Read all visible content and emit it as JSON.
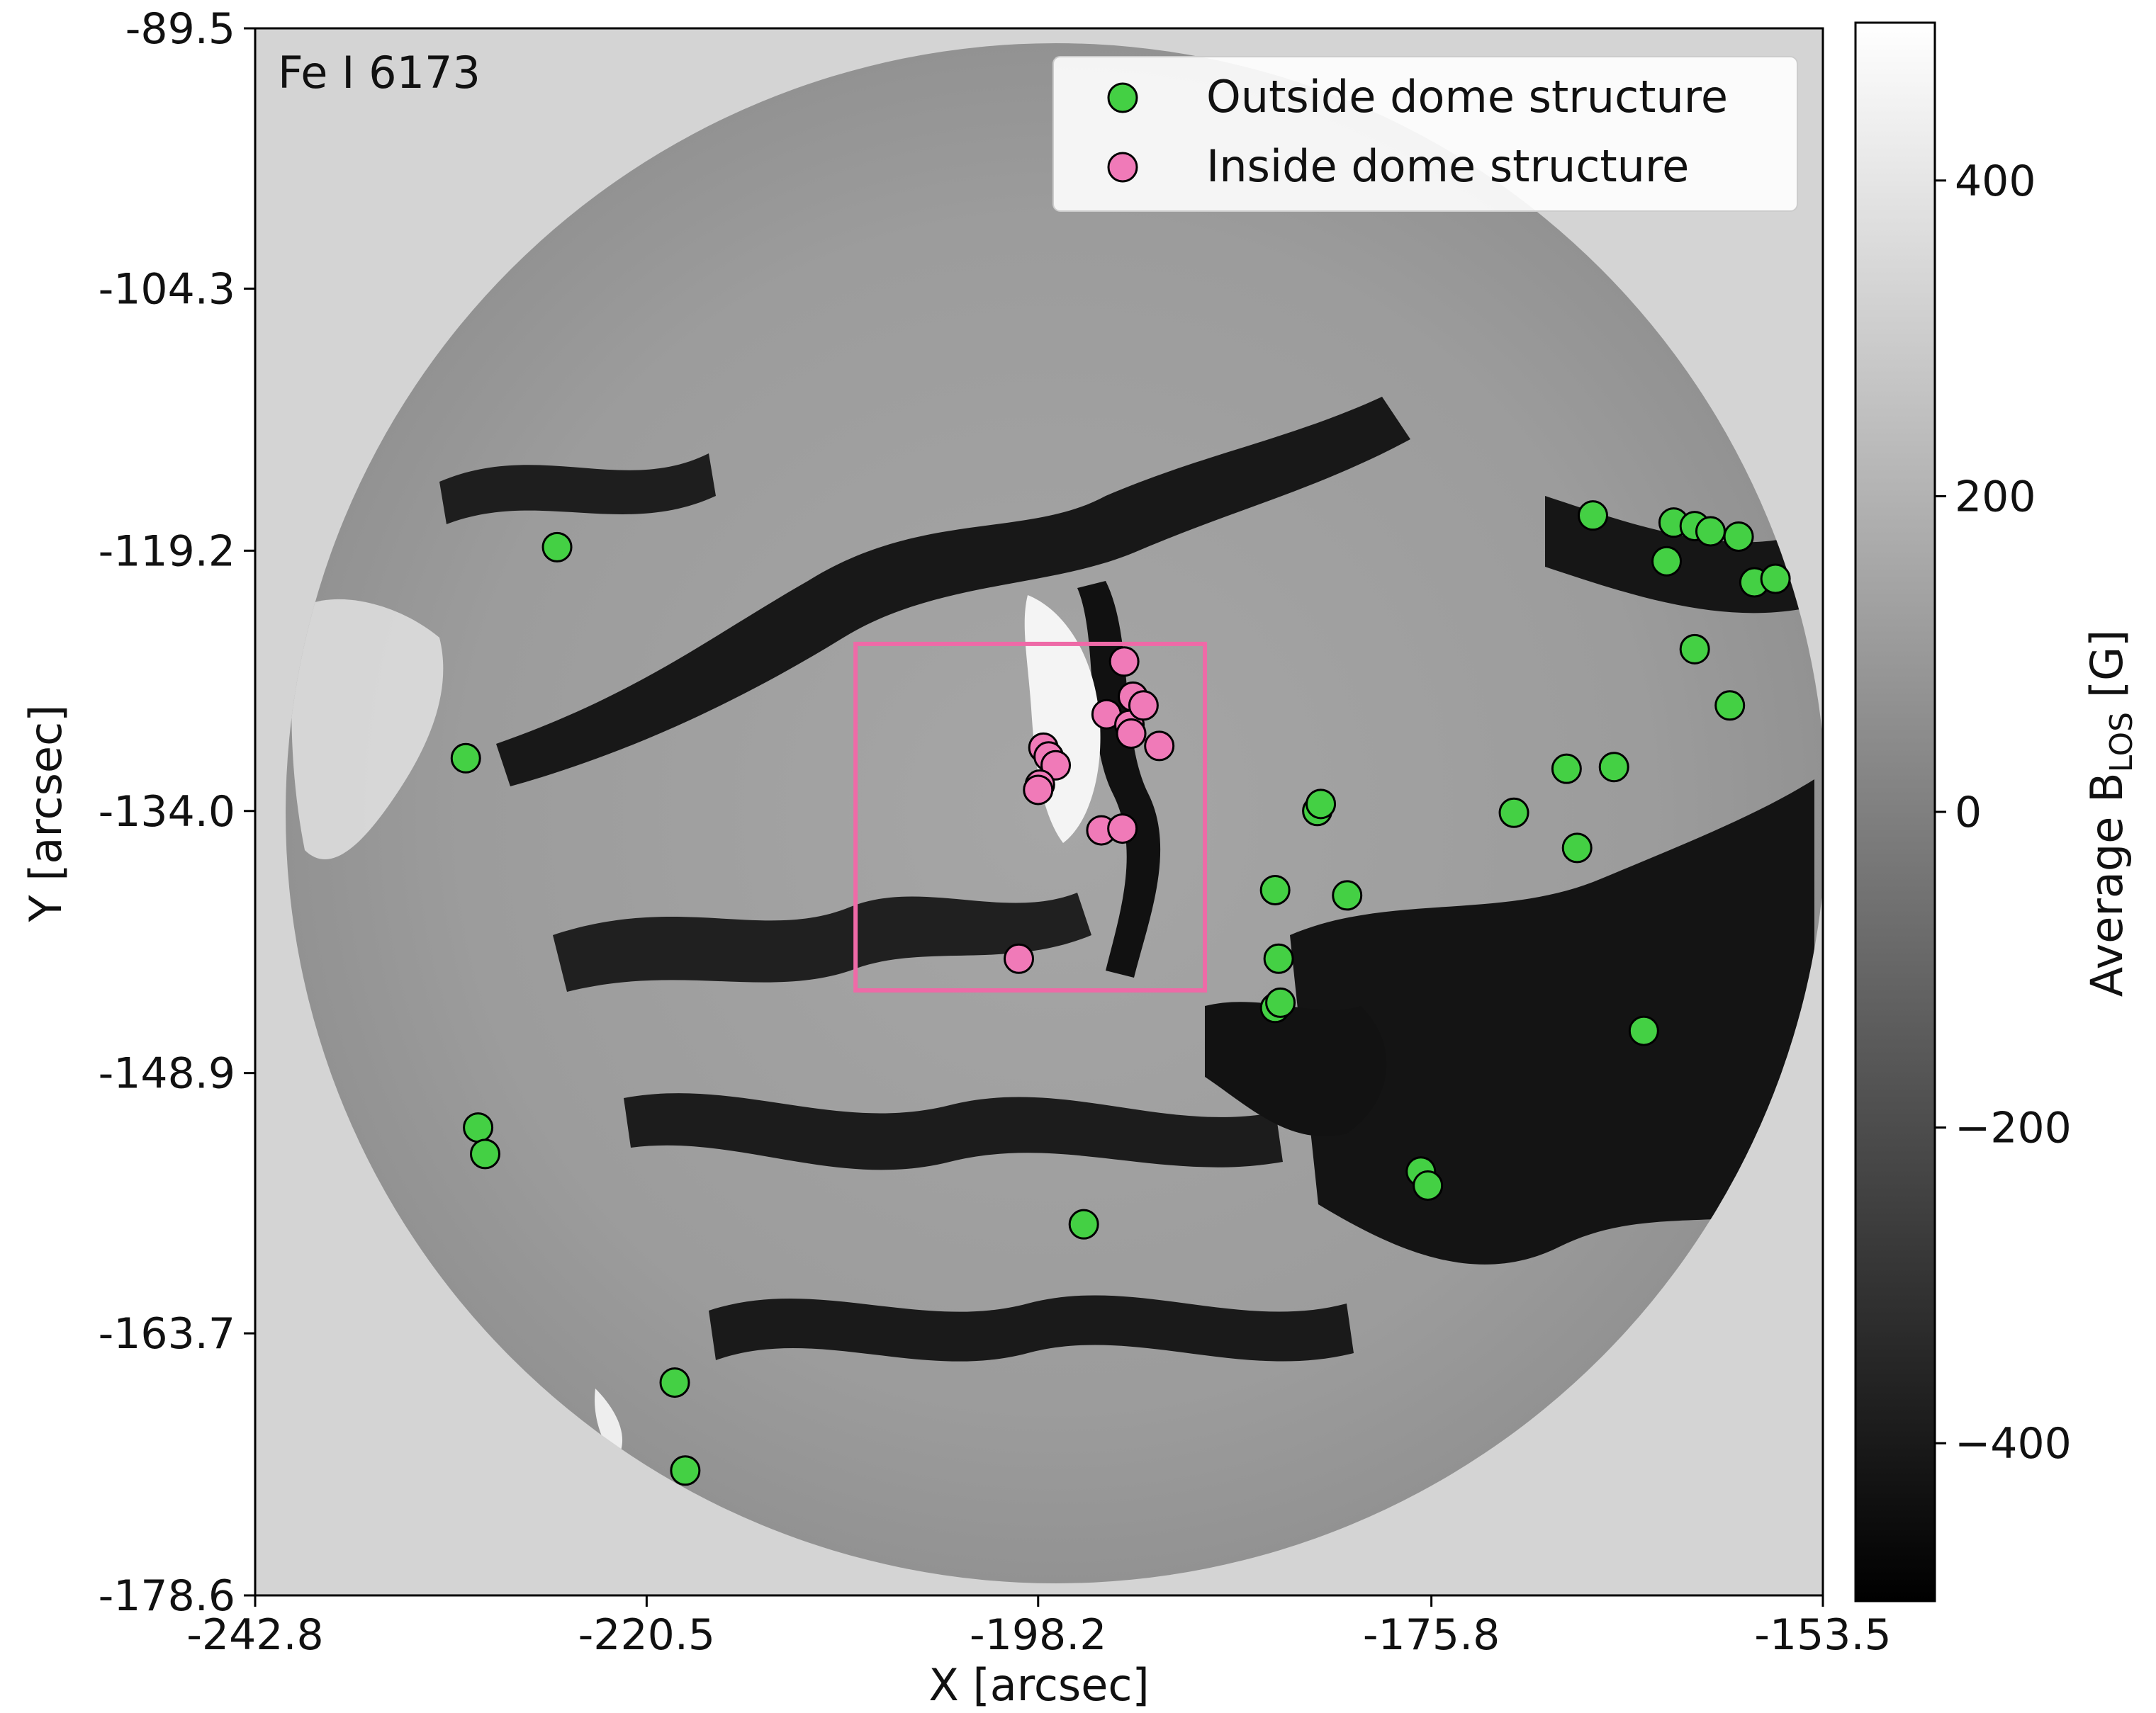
{
  "chart_data": {
    "type": "scatter",
    "panel_label": "Fe I 6173",
    "xlabel": "X [arcsec]",
    "ylabel": "Y [arcsec]",
    "xlim": [
      -242.8,
      -153.5
    ],
    "ylim": [
      -178.6,
      -89.5
    ],
    "x_ticks": [
      "-242.8",
      "-220.5",
      "-198.2",
      "-175.8",
      "-153.5"
    ],
    "y_ticks": [
      "-89.5",
      "-104.3",
      "-119.2",
      "-134.0",
      "-148.9",
      "-163.7",
      "-178.6"
    ],
    "colorbar": {
      "label": "Average B",
      "label_sub": "LOS",
      "label_suffix": " [G]",
      "range": [
        -500,
        500
      ],
      "ticks": [
        "400",
        "200",
        "0",
        "−200",
        "−400"
      ],
      "cmap": "gray"
    },
    "background_image": "grayscale LOS magnetogram disk",
    "region_box": {
      "x": [
        -208.6,
        -188.7
      ],
      "y": [
        -144.2,
        -124.5
      ],
      "color": "#ee6aa7"
    },
    "legend": {
      "position": "top-right"
    },
    "series": [
      {
        "name": "Outside dome structure",
        "color": "#44d044",
        "points": [
          [
            -225.6,
            -119.0
          ],
          [
            -230.8,
            -131.0
          ],
          [
            -230.1,
            -152.0
          ],
          [
            -229.7,
            -153.5
          ],
          [
            -218.9,
            -166.5
          ],
          [
            -218.3,
            -171.5
          ],
          [
            -195.6,
            -157.5
          ],
          [
            -184.7,
            -138.5
          ],
          [
            -184.5,
            -142.4
          ],
          [
            -184.7,
            -145.2
          ],
          [
            -184.4,
            -144.9
          ],
          [
            -182.3,
            -134.0
          ],
          [
            -182.1,
            -133.6
          ],
          [
            -180.6,
            -138.8
          ],
          [
            -176.4,
            -154.5
          ],
          [
            -176.0,
            -155.3
          ],
          [
            -171.1,
            -134.1
          ],
          [
            -167.5,
            -136.1
          ],
          [
            -168.1,
            -131.6
          ],
          [
            -165.4,
            -131.5
          ],
          [
            -166.6,
            -117.2
          ],
          [
            -163.7,
            -146.5
          ],
          [
            -162.4,
            -119.8
          ],
          [
            -162.0,
            -117.6
          ],
          [
            -160.8,
            -117.8
          ],
          [
            -159.9,
            -118.1
          ],
          [
            -160.8,
            -124.8
          ],
          [
            -158.3,
            -118.4
          ],
          [
            -158.8,
            -128.0
          ],
          [
            -157.4,
            -121.0
          ],
          [
            -156.2,
            -120.8
          ]
        ]
      },
      {
        "name": "Inside dome structure",
        "color": "#f07ab8",
        "points": [
          [
            -193.3,
            -125.5
          ],
          [
            -192.8,
            -127.5
          ],
          [
            -194.3,
            -128.5
          ],
          [
            -193.0,
            -129.1
          ],
          [
            -192.9,
            -129.6
          ],
          [
            -191.3,
            -130.3
          ],
          [
            -192.2,
            -128.0
          ],
          [
            -197.9,
            -130.4
          ],
          [
            -197.6,
            -130.9
          ],
          [
            -197.2,
            -131.4
          ],
          [
            -198.1,
            -132.5
          ],
          [
            -198.2,
            -132.8
          ],
          [
            -194.6,
            -135.1
          ],
          [
            -193.4,
            -135.0
          ],
          [
            -199.3,
            -142.4
          ]
        ]
      }
    ]
  }
}
